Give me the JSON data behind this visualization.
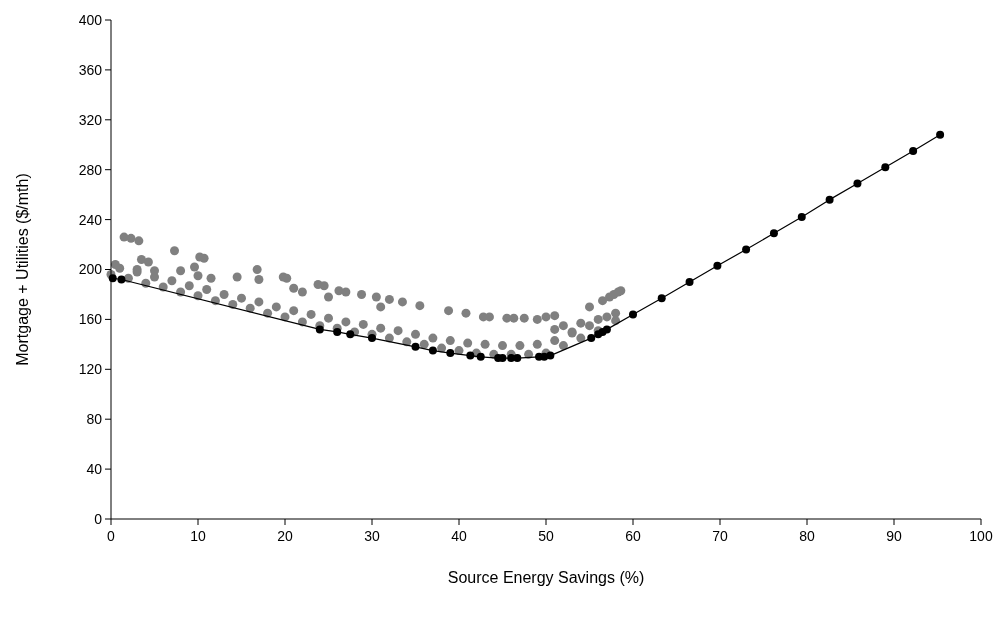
{
  "chart_data": {
    "type": "scatter",
    "xlabel": "Source Energy Savings (%)",
    "ylabel": "Mortgage + Utilities ($/mth)",
    "xlim": [
      0,
      100
    ],
    "xticks": [
      0,
      10,
      20,
      30,
      40,
      50,
      60,
      70,
      80,
      90,
      100
    ],
    "ylim": [
      0,
      400
    ],
    "yticks": [
      0,
      40,
      80,
      120,
      160,
      200,
      240,
      280,
      320,
      360,
      400
    ],
    "grid": false,
    "series": [
      {
        "color": "#808080",
        "marker": "circle",
        "x": [
          0,
          2,
          4,
          6,
          8,
          10,
          12,
          14,
          16,
          18,
          20,
          22,
          24,
          26,
          28,
          30,
          32,
          34,
          36,
          38,
          40,
          42,
          44,
          46,
          48,
          50,
          52,
          54,
          56,
          58,
          1,
          3,
          5,
          7,
          9,
          11,
          13,
          15,
          17,
          19,
          21,
          23,
          25,
          27,
          29,
          31,
          33,
          35,
          37,
          39,
          41,
          43,
          45,
          47,
          49,
          51,
          53,
          55,
          57,
          52,
          54,
          56,
          58,
          51,
          53,
          1.5,
          2.3,
          3.2,
          3.5,
          4.3,
          7.3,
          10.2,
          10.7,
          5,
          3,
          0.5,
          8,
          9.6,
          10,
          11.5,
          14.5,
          16.8,
          17,
          19.8,
          20.2,
          23.8,
          24.5,
          26.2,
          27,
          28.8,
          30.5,
          32,
          33.5,
          35.5,
          38.8,
          40.8,
          42.8,
          43.5,
          45.5,
          46.3,
          47.5,
          49,
          50,
          51,
          56.5,
          57.3,
          57.8,
          58.3,
          58.6,
          55,
          21,
          25,
          31,
          22
        ],
        "values": [
          196,
          193,
          189,
          186,
          182,
          179,
          175,
          172,
          169,
          165,
          162,
          158,
          155,
          153,
          150,
          148,
          145,
          142,
          140,
          137,
          135,
          133,
          132,
          132,
          132,
          133,
          139,
          145,
          151,
          159,
          201,
          198,
          194,
          191,
          187,
          184,
          180,
          177,
          174,
          170,
          167,
          164,
          161,
          158,
          156,
          153,
          151,
          148,
          145,
          143,
          141,
          140,
          139,
          139,
          140,
          143,
          149,
          155,
          162,
          155,
          157,
          160,
          165,
          152,
          150,
          226,
          225,
          223,
          208,
          206,
          215,
          210,
          209,
          199,
          200,
          204,
          199,
          202,
          195,
          193,
          194,
          200,
          192,
          194,
          193,
          188,
          187,
          183,
          182,
          180,
          178,
          176,
          174,
          171,
          167,
          165,
          162,
          162,
          161,
          161,
          161,
          160,
          162,
          163,
          175,
          178,
          180,
          182,
          183,
          170,
          185,
          178,
          170,
          182
        ]
      },
      {
        "type": "line",
        "color": "#000000",
        "marker": "circle",
        "line_style": "solid",
        "x": [
          0.2,
          1.2,
          24,
          26,
          27.5,
          30,
          35,
          37,
          39,
          41.3,
          42.5,
          44.5,
          45,
          46,
          46.7,
          49.2,
          49.8,
          50.5,
          55.2,
          56,
          56.5,
          57,
          60,
          63.3,
          66.5,
          69.7,
          73,
          76.2,
          79.4,
          82.6,
          85.8,
          89,
          92.2,
          95.3
        ],
        "values": [
          193,
          192,
          152,
          150,
          148,
          145,
          138,
          135,
          133,
          131,
          130,
          129,
          129,
          129,
          129,
          130,
          130,
          131,
          145,
          148,
          150,
          152,
          164,
          177,
          190,
          203,
          216,
          229,
          242,
          256,
          269,
          282,
          295,
          308
        ]
      }
    ]
  }
}
